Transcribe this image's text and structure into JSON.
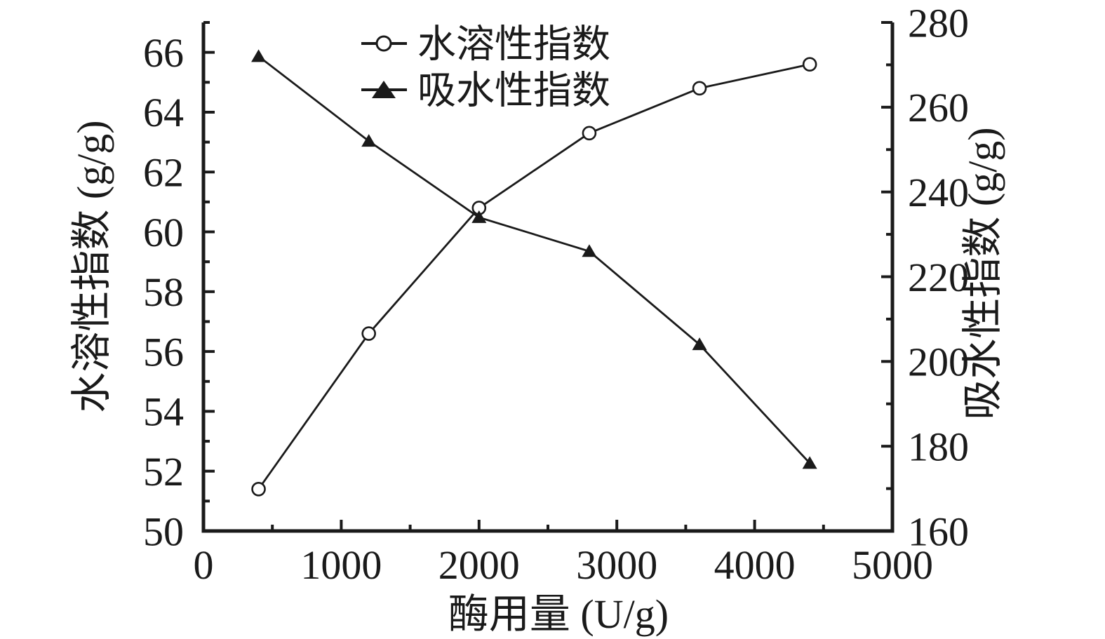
{
  "figure": {
    "background": "#ffffff",
    "ink_color": "#1a1a1a"
  },
  "chart_data": {
    "type": "line",
    "title": "",
    "grid": false,
    "legend_position": "top-center-inside",
    "x": [
      400,
      1200,
      2000,
      2800,
      3600,
      4400
    ],
    "series": [
      {
        "name": "水溶性指数",
        "axis": "left",
        "marker": "open-circle",
        "line_color": "#1a1a1a",
        "values": [
          51.4,
          56.6,
          60.8,
          63.3,
          64.8,
          65.6
        ]
      },
      {
        "name": "吸水性指数",
        "axis": "right",
        "marker": "filled-triangle",
        "line_color": "#1a1a1a",
        "values": [
          272,
          252,
          234,
          226,
          204,
          176
        ]
      }
    ],
    "x_axis": {
      "label": "酶用量 (U/g)",
      "min": 0,
      "max": 5000,
      "major_ticks": [
        0,
        1000,
        2000,
        3000,
        4000,
        5000
      ],
      "minor_ticks": [
        500,
        1500,
        2500,
        3500,
        4500
      ]
    },
    "y_left": {
      "label": "水溶性指数 (g/g)",
      "min": 50,
      "max": 67,
      "major_ticks": [
        50,
        52,
        54,
        56,
        58,
        60,
        62,
        64,
        66
      ],
      "minor_ticks": [
        51,
        53,
        55,
        57,
        59,
        61,
        63,
        65,
        67
      ]
    },
    "y_right": {
      "label": "吸水性指数 (g/g)",
      "min": 160,
      "max": 280,
      "major_ticks": [
        160,
        180,
        200,
        220,
        240,
        260,
        280
      ],
      "minor_ticks": [
        170,
        190,
        210,
        230,
        250,
        270
      ]
    },
    "legend": [
      {
        "label": "水溶性指数",
        "marker": "open-circle"
      },
      {
        "label": "吸水性指数",
        "marker": "filled-triangle"
      }
    ]
  }
}
